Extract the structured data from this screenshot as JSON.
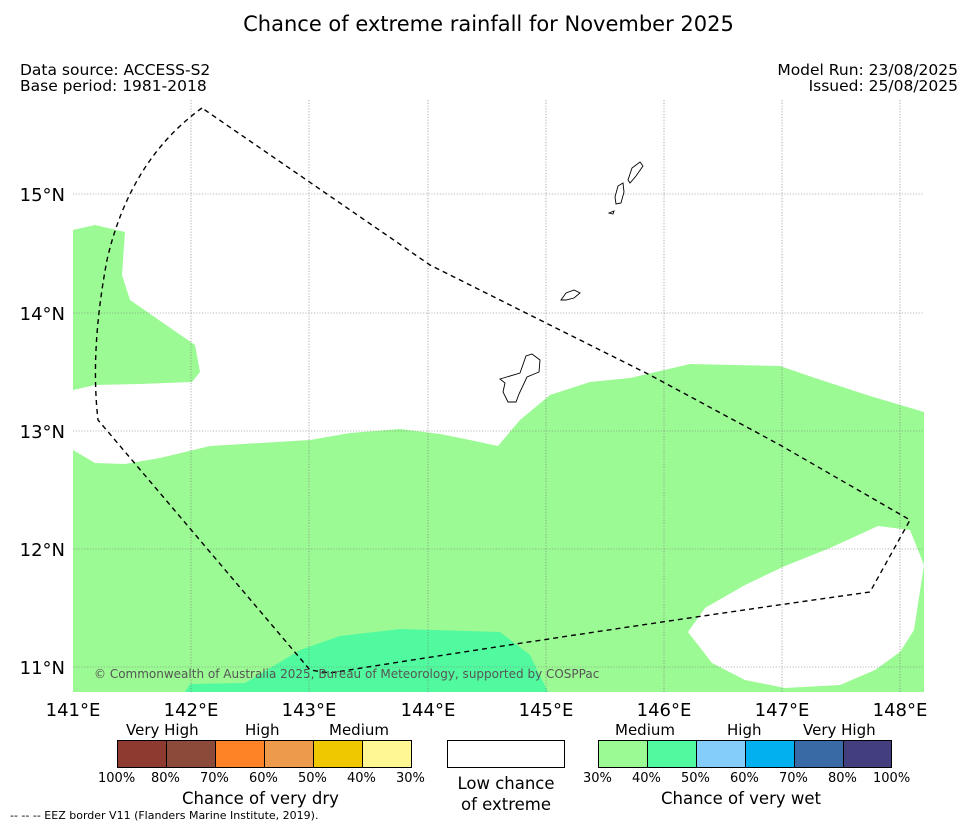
{
  "title": "Chance of extreme rainfall for November 2025",
  "data_source": "Data source: ACCESS-S2",
  "base_period": "Base period: 1981-2018",
  "model_run": "Model Run: 23/08/2025",
  "issued": "Issued: 25/08/2025",
  "copyright": "© Commonwealth of Australia 2025, Bureau of Meteorology, supported by COSPPac",
  "footer": "--  --  -- EEZ border V11 (Flanders Marine Institute, 2019).",
  "map": {
    "lon_labels": [
      "141°E",
      "142°E",
      "143°E",
      "144°E",
      "145°E",
      "146°E",
      "147°E",
      "148°E"
    ],
    "lat_labels": [
      "15°N",
      "14°N",
      "13°N",
      "12°N",
      "11°N"
    ],
    "colors": {
      "medium_wet": "#9cfa94",
      "high_wet": "#52fa9f",
      "low": "#ffffff"
    }
  },
  "legend": {
    "dry": {
      "title": "Chance of very dry",
      "categories": [
        "Very High",
        "High",
        "Medium"
      ],
      "ticks": [
        "100%",
        "80%",
        "70%",
        "60%",
        "50%",
        "40%",
        "30%"
      ],
      "colors": [
        "#8e3a30",
        "#8c4b3a",
        "#fe8226",
        "#ed9a4c",
        "#f0c800",
        "#fff694"
      ]
    },
    "low": {
      "line1": "Low chance",
      "line2": "of extreme"
    },
    "wet": {
      "title": "Chance of very wet",
      "categories": [
        "Medium",
        "High",
        "Very High"
      ],
      "ticks": [
        "30%",
        "40%",
        "50%",
        "60%",
        "70%",
        "80%",
        "100%"
      ],
      "colors": [
        "#9cfa94",
        "#52fa9f",
        "#84cdfb",
        "#03b0ef",
        "#3a6aa5",
        "#433f7e"
      ]
    }
  }
}
